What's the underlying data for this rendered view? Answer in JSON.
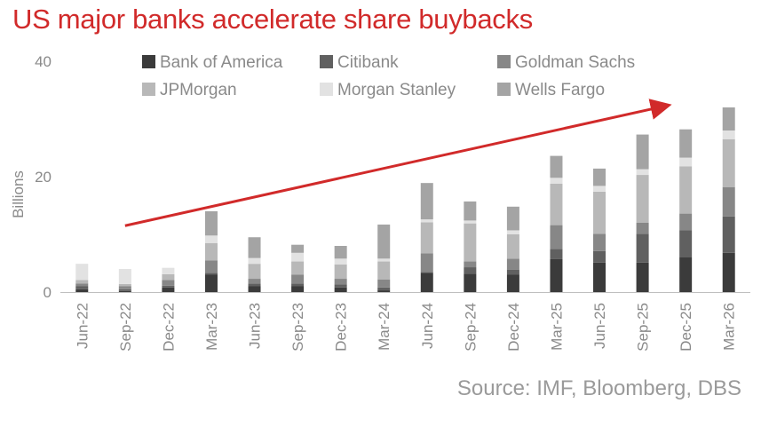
{
  "title": "US major banks accelerate share buybacks",
  "source": "Source: IMF, Bloomberg, DBS",
  "chart_data": {
    "type": "bar",
    "stacked": true,
    "title": "US major banks accelerate share buybacks",
    "xlabel": "",
    "ylabel": "Billions",
    "ylim": [
      0,
      40
    ],
    "yticks": [
      0,
      20,
      40
    ],
    "legend_position": "top",
    "categories": [
      "Jun-22",
      "Sep-22",
      "Dec-22",
      "Mar-23",
      "Jun-23",
      "Sep-23",
      "Dec-23",
      "Mar-24",
      "Jun-24",
      "Sep-24",
      "Dec-24",
      "Mar-25",
      "Jun-25",
      "Sep-25",
      "Dec-25",
      "Mar-26"
    ],
    "series": [
      {
        "name": "Bank of  America",
        "color": "#3b3b3b",
        "values": [
          0.5,
          0.2,
          0.8,
          3.0,
          1.0,
          1.0,
          0.8,
          0.3,
          3.3,
          3.2,
          3.0,
          5.7,
          5.1,
          5.1,
          6.0,
          6.8
        ]
      },
      {
        "name": "Citibank",
        "color": "#606060",
        "values": [
          0.5,
          0.3,
          0.3,
          0.3,
          0.5,
          0.5,
          0.5,
          0.5,
          0.2,
          1.1,
          0.9,
          1.8,
          2.0,
          5.0,
          4.7,
          6.3
        ]
      },
      {
        "name": "Goldman Sachs",
        "color": "#878787",
        "values": [
          0.5,
          0.5,
          1.0,
          2.2,
          0.8,
          1.5,
          1.0,
          1.4,
          3.2,
          1.0,
          1.9,
          4.1,
          3.0,
          1.9,
          2.9,
          5.1
        ]
      },
      {
        "name": "JPMorgan",
        "color": "#b8b8b8",
        "values": [
          0.6,
          0.4,
          1.0,
          3.0,
          2.6,
          2.3,
          2.5,
          3.1,
          5.4,
          6.6,
          4.2,
          7.2,
          7.3,
          8.3,
          8.2,
          8.3
        ]
      },
      {
        "name": "Morgan Stanley",
        "color": "#e2e2e2",
        "values": [
          2.8,
          2.6,
          1.1,
          1.3,
          1.0,
          1.5,
          1.0,
          0.5,
          0.5,
          0.5,
          0.7,
          1.0,
          1.0,
          1.0,
          1.5,
          1.5
        ]
      },
      {
        "name": "Wells Fargo",
        "color": "#a4a4a4",
        "values": [
          0.0,
          0.0,
          0.0,
          4.2,
          3.6,
          1.4,
          2.2,
          5.9,
          6.3,
          3.3,
          4.1,
          3.8,
          3.0,
          6.0,
          4.9,
          4.0
        ]
      }
    ],
    "annotations": [
      {
        "type": "arrow",
        "color": "#d12a2a",
        "from": {
          "category": "Sep-22",
          "value": 11.5
        },
        "to": {
          "category": "Mar-26",
          "value": 32.3
        }
      }
    ]
  }
}
